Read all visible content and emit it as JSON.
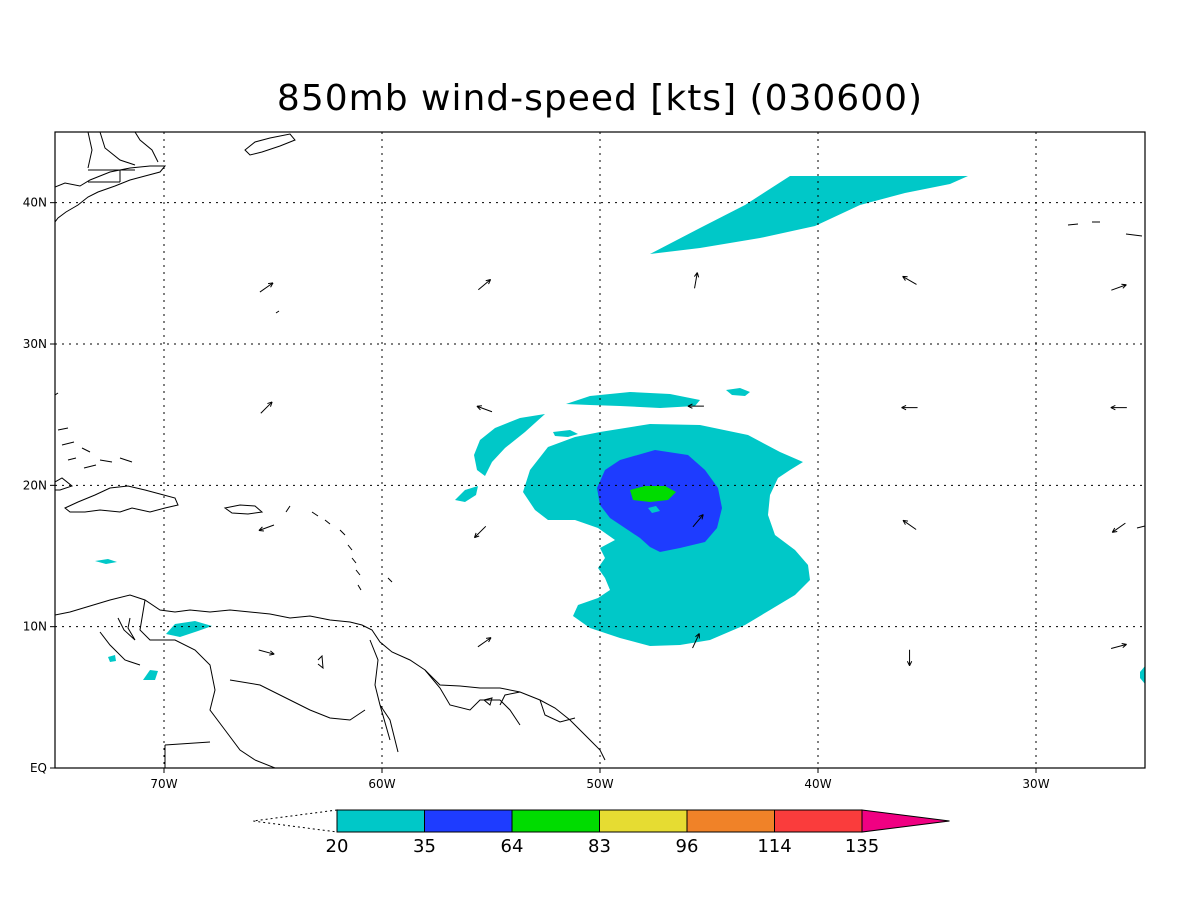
{
  "title": "850mb wind-speed [kts] (030600)",
  "map": {
    "lon_range": [
      -75,
      -25
    ],
    "lat_range": [
      0,
      45
    ],
    "x_ticks": [
      {
        "lon": -70,
        "label": "70W"
      },
      {
        "lon": -60,
        "label": "60W"
      },
      {
        "lon": -50,
        "label": "50W"
      },
      {
        "lon": -40,
        "label": "40W"
      },
      {
        "lon": -30,
        "label": "30W"
      }
    ],
    "y_ticks": [
      {
        "lat": 0,
        "label": "EQ"
      },
      {
        "lat": 10,
        "label": "10N"
      },
      {
        "lat": 20,
        "label": "20N"
      },
      {
        "lat": 30,
        "label": "30N"
      },
      {
        "lat": 40,
        "label": "40N"
      }
    ],
    "grid": "dotted"
  },
  "colorbar": {
    "bins": [
      {
        "color": "#00c8c8"
      },
      {
        "color": "#1e3cff"
      },
      {
        "color": "#00dc00"
      },
      {
        "color": "#e6dc32"
      },
      {
        "color": "#f08228"
      },
      {
        "color": "#fa3c3c"
      },
      {
        "color": "#f00082"
      }
    ],
    "labels": [
      "20",
      "35",
      "64",
      "83",
      "96",
      "114",
      "135"
    ]
  },
  "colors": {
    "level_20": "#00c8c8",
    "level_35": "#1e3cff",
    "level_64": "#00dc00",
    "coast": "#000000"
  },
  "wind_vectors": [
    {
      "lon": -65.3,
      "lat": 34.0,
      "dir_deg": 35
    },
    {
      "lon": -55.3,
      "lat": 34.2,
      "dir_deg": 40
    },
    {
      "lon": -45.6,
      "lat": 34.5,
      "dir_deg": 80
    },
    {
      "lon": -35.8,
      "lat": 34.5,
      "dir_deg": 150
    },
    {
      "lon": -26.2,
      "lat": 34.0,
      "dir_deg": 20
    },
    {
      "lon": -65.3,
      "lat": 25.5,
      "dir_deg": 45
    },
    {
      "lon": -55.3,
      "lat": 25.4,
      "dir_deg": 160
    },
    {
      "lon": -45.6,
      "lat": 25.6,
      "dir_deg": 180
    },
    {
      "lon": -35.8,
      "lat": 25.5,
      "dir_deg": 180
    },
    {
      "lon": -26.2,
      "lat": 25.5,
      "dir_deg": 180
    },
    {
      "lon": -65.3,
      "lat": 17.0,
      "dir_deg": 200
    },
    {
      "lon": -55.5,
      "lat": 16.7,
      "dir_deg": 225
    },
    {
      "lon": -45.5,
      "lat": 17.5,
      "dir_deg": 50
    },
    {
      "lon": -35.8,
      "lat": 17.2,
      "dir_deg": 145
    },
    {
      "lon": -26.2,
      "lat": 17.0,
      "dir_deg": 215
    },
    {
      "lon": -65.3,
      "lat": 8.2,
      "dir_deg": -15
    },
    {
      "lon": -55.3,
      "lat": 8.9,
      "dir_deg": 35
    },
    {
      "lon": -45.6,
      "lat": 9.0,
      "dir_deg": 65
    },
    {
      "lon": -35.8,
      "lat": 7.8,
      "dir_deg": 270
    },
    {
      "lon": -26.2,
      "lat": 8.6,
      "dir_deg": 15
    }
  ]
}
